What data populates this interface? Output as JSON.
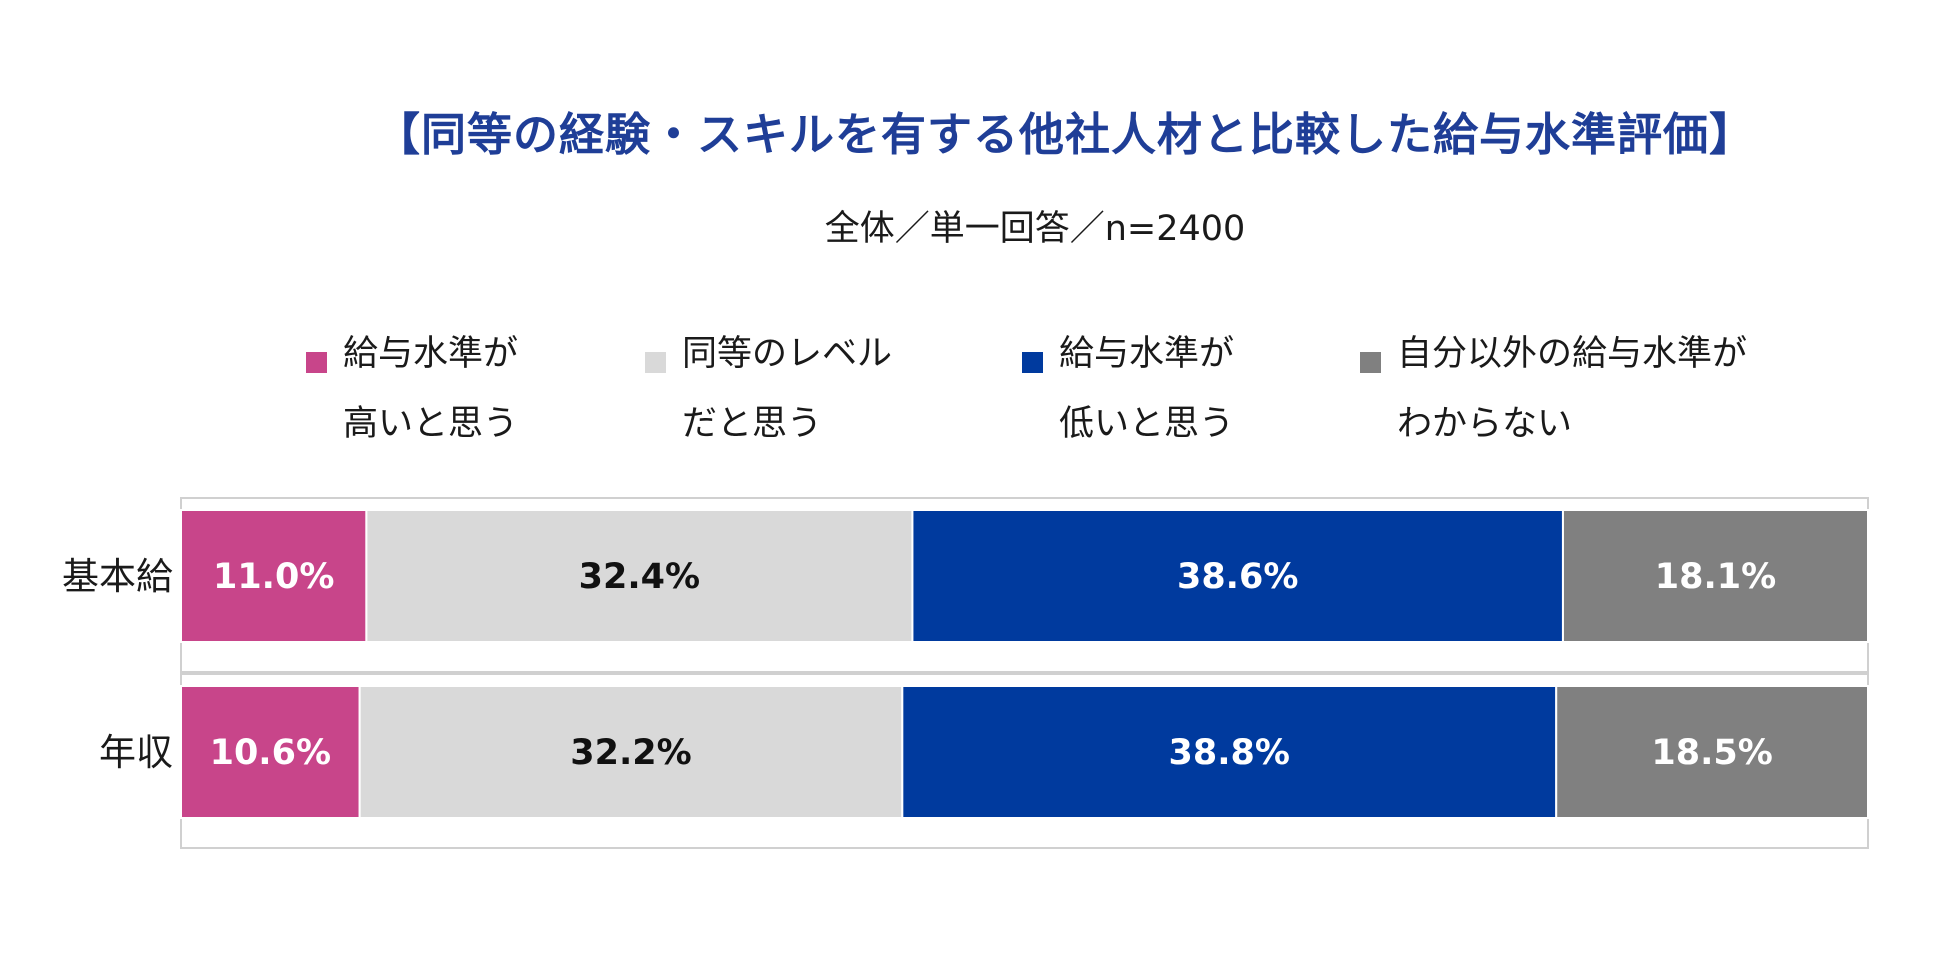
{
  "chart_data": {
    "type": "bar",
    "orientation": "horizontal",
    "stacked": true,
    "title": "【同等の経験・スキルを有する他社人材と比較した給与水準評価】",
    "subtitle": "全体／単一回答／n=2400",
    "categories": [
      "基本給",
      "年収"
    ],
    "series": [
      {
        "name": "給与水準が高いと思う",
        "legend_lines": [
          "給与水準が",
          "高いと思う"
        ],
        "color": "#c8458a",
        "label_color": "#ffffff",
        "values": [
          11.0,
          10.6
        ],
        "labels": [
          "11.0%",
          "10.6%"
        ]
      },
      {
        "name": "同等のレベルだと思う",
        "legend_lines": [
          "同等のレベル",
          "だと思う"
        ],
        "color": "#d9d9d9",
        "label_color": "#111111",
        "values": [
          32.4,
          32.2
        ],
        "labels": [
          "32.4%",
          "32.2%"
        ]
      },
      {
        "name": "給与水準が低いと思う",
        "legend_lines": [
          "給与水準が",
          "低いと思う"
        ],
        "color": "#003a9e",
        "label_color": "#ffffff",
        "values": [
          38.6,
          38.8
        ],
        "labels": [
          "38.6%",
          "38.8%"
        ]
      },
      {
        "name": "自分以外の給与水準がわからない",
        "legend_lines": [
          "自分以外の給与水準が",
          "わからない"
        ],
        "color": "#808080",
        "label_color": "#ffffff",
        "values": [
          18.1,
          18.5
        ],
        "labels": [
          "18.1%",
          "18.5%"
        ]
      }
    ],
    "xlim": [
      0,
      100
    ],
    "legend_position": "top"
  }
}
